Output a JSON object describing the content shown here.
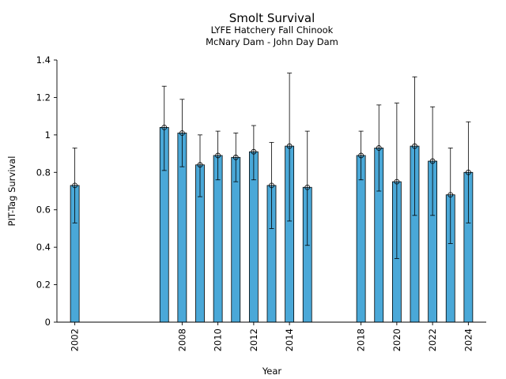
{
  "chart_data": {
    "type": "bar",
    "title": "Smolt Survival",
    "subtitle": [
      "LYFE Hatchery Fall Chinook",
      "McNary Dam - John Day Dam"
    ],
    "xlabel": "Year",
    "ylabel": "PIT-Tag Survival",
    "ylim": [
      0,
      1.4
    ],
    "xlim": [
      2001.0,
      2025.0
    ],
    "yticks": [
      0,
      0.2,
      0.4,
      0.6,
      0.8,
      1.0,
      1.2,
      1.4
    ],
    "ytick_labels": [
      "0",
      "0.2",
      "0.4",
      "0.6",
      "0.8",
      "1",
      "1.2",
      "1.4"
    ],
    "xticks": [
      2002,
      2008,
      2010,
      2012,
      2014,
      2018,
      2020,
      2022,
      2024
    ],
    "xtick_labels": [
      "2002",
      "2008",
      "2010",
      "2012",
      "2014",
      "2018",
      "2020",
      "2022",
      "2024"
    ],
    "grid": false,
    "bar_color": "#4aa8d8",
    "series": [
      {
        "x": [
          2002,
          2007,
          2008,
          2009,
          2010,
          2011,
          2012,
          2013,
          2014,
          2015,
          2018,
          2019,
          2020,
          2021,
          2022,
          2023,
          2024
        ],
        "values": [
          0.73,
          1.04,
          1.01,
          0.84,
          0.89,
          0.88,
          0.91,
          0.73,
          0.94,
          0.72,
          0.89,
          0.93,
          0.75,
          0.94,
          0.86,
          0.68,
          0.8
        ],
        "err_upper": [
          0.93,
          1.26,
          1.19,
          1.0,
          1.02,
          1.01,
          1.05,
          0.96,
          1.33,
          1.02,
          1.02,
          1.16,
          1.17,
          1.31,
          1.15,
          0.93,
          1.07
        ],
        "err_lower": [
          0.53,
          0.81,
          0.83,
          0.67,
          0.76,
          0.75,
          0.76,
          0.5,
          0.54,
          0.41,
          0.76,
          0.7,
          0.34,
          0.57,
          0.57,
          0.42,
          0.53
        ]
      }
    ]
  }
}
